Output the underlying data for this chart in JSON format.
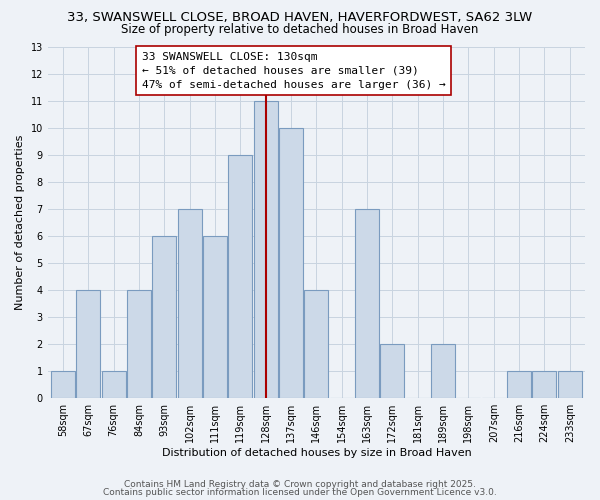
{
  "title": "33, SWANSWELL CLOSE, BROAD HAVEN, HAVERFORDWEST, SA62 3LW",
  "subtitle": "Size of property relative to detached houses in Broad Haven",
  "xlabel": "Distribution of detached houses by size in Broad Haven",
  "ylabel": "Number of detached properties",
  "bins_labels": [
    "58sqm",
    "67sqm",
    "76sqm",
    "84sqm",
    "93sqm",
    "102sqm",
    "111sqm",
    "119sqm",
    "128sqm",
    "137sqm",
    "146sqm",
    "154sqm",
    "163sqm",
    "172sqm",
    "181sqm",
    "189sqm",
    "198sqm",
    "207sqm",
    "216sqm",
    "224sqm",
    "233sqm"
  ],
  "bar_values": [
    1,
    4,
    1,
    4,
    6,
    7,
    6,
    9,
    11,
    10,
    4,
    0,
    7,
    2,
    0,
    2,
    0,
    0,
    1,
    1,
    1
  ],
  "bar_color": "#ccd9e8",
  "bar_edgecolor": "#7a9bbf",
  "property_line_x": 8,
  "property_line_label": "33 SWANSWELL CLOSE: 130sqm",
  "annotation_line1": "← 51% of detached houses are smaller (39)",
  "annotation_line2": "47% of semi-detached houses are larger (36) →",
  "vline_color": "#aa0000",
  "ylim": [
    0,
    13
  ],
  "yticks": [
    0,
    1,
    2,
    3,
    4,
    5,
    6,
    7,
    8,
    9,
    10,
    11,
    12,
    13
  ],
  "grid_color": "#c8d4e0",
  "background_color": "#eef2f7",
  "footnote1": "Contains HM Land Registry data © Crown copyright and database right 2025.",
  "footnote2": "Contains public sector information licensed under the Open Government Licence v3.0.",
  "title_fontsize": 9.5,
  "subtitle_fontsize": 8.5,
  "axis_label_fontsize": 8,
  "tick_fontsize": 7,
  "annotation_fontsize": 8,
  "footnote_fontsize": 6.5
}
